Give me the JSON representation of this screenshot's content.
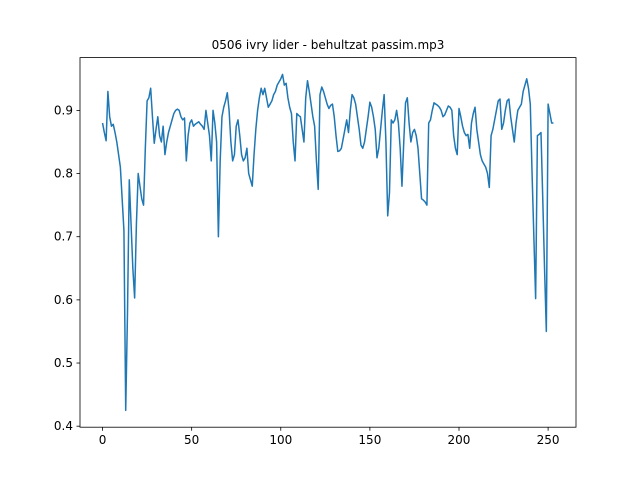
{
  "chart_data": {
    "type": "line",
    "title": "0506 ivry lider - behultzat passim.mp3",
    "color": "#1f77b4",
    "x": [
      0,
      1,
      2,
      3,
      4,
      5,
      6,
      7,
      8,
      9,
      10,
      11,
      12,
      13,
      14,
      15,
      16,
      17,
      18,
      19,
      20,
      21,
      22,
      23,
      24,
      25,
      26,
      27,
      28,
      29,
      30,
      31,
      32,
      33,
      34,
      35,
      36,
      37,
      38,
      39,
      40,
      41,
      42,
      43,
      44,
      45,
      46,
      47,
      48,
      49,
      50,
      51,
      52,
      53,
      54,
      55,
      56,
      57,
      58,
      59,
      60,
      61,
      62,
      63,
      64,
      65,
      66,
      67,
      68,
      69,
      70,
      71,
      72,
      73,
      74,
      75,
      76,
      77,
      78,
      79,
      80,
      81,
      82,
      83,
      84,
      85,
      86,
      87,
      88,
      89,
      90,
      91,
      92,
      93,
      94,
      95,
      96,
      97,
      98,
      99,
      100,
      101,
      102,
      103,
      104,
      105,
      106,
      107,
      108,
      109,
      110,
      111,
      112,
      113,
      114,
      115,
      116,
      117,
      118,
      119,
      120,
      121,
      122,
      123,
      124,
      125,
      126,
      127,
      128,
      129,
      130,
      131,
      132,
      133,
      134,
      135,
      136,
      137,
      138,
      139,
      140,
      141,
      142,
      143,
      144,
      145,
      146,
      147,
      148,
      149,
      150,
      151,
      152,
      153,
      154,
      155,
      156,
      157,
      158,
      159,
      160,
      161,
      162,
      163,
      164,
      165,
      166,
      167,
      168,
      169,
      170,
      171,
      172,
      173,
      174,
      175,
      176,
      177,
      178,
      179,
      180,
      181,
      182,
      183,
      184,
      185,
      186,
      187,
      188,
      189,
      190,
      191,
      192,
      193,
      194,
      195,
      196,
      197,
      198,
      199,
      200,
      201,
      202,
      203,
      204,
      205,
      206,
      207,
      208,
      209,
      210,
      211,
      212,
      213,
      214,
      215,
      216,
      217,
      218,
      219,
      220,
      221,
      222,
      223,
      224,
      225,
      226,
      227,
      228,
      229,
      230,
      231,
      232,
      233,
      234,
      235,
      236,
      237,
      238,
      239,
      240,
      241,
      242,
      243,
      244,
      245,
      246,
      247,
      248,
      249,
      250,
      251,
      252,
      253
    ],
    "values": [
      0.88,
      0.865,
      0.852,
      0.93,
      0.89,
      0.875,
      0.878,
      0.865,
      0.85,
      0.83,
      0.81,
      0.76,
      0.71,
      0.425,
      0.58,
      0.79,
      0.72,
      0.65,
      0.603,
      0.72,
      0.8,
      0.78,
      0.76,
      0.75,
      0.84,
      0.915,
      0.92,
      0.935,
      0.89,
      0.848,
      0.87,
      0.89,
      0.86,
      0.85,
      0.875,
      0.83,
      0.85,
      0.865,
      0.875,
      0.885,
      0.895,
      0.9,
      0.902,
      0.9,
      0.89,
      0.885,
      0.888,
      0.82,
      0.86,
      0.88,
      0.885,
      0.875,
      0.878,
      0.88,
      0.882,
      0.878,
      0.875,
      0.87,
      0.9,
      0.88,
      0.86,
      0.82,
      0.9,
      0.88,
      0.85,
      0.7,
      0.82,
      0.89,
      0.905,
      0.915,
      0.928,
      0.9,
      0.85,
      0.82,
      0.83,
      0.875,
      0.885,
      0.86,
      0.83,
      0.82,
      0.825,
      0.84,
      0.8,
      0.79,
      0.78,
      0.83,
      0.87,
      0.9,
      0.92,
      0.935,
      0.925,
      0.935,
      0.92,
      0.905,
      0.91,
      0.915,
      0.925,
      0.93,
      0.94,
      0.945,
      0.95,
      0.957,
      0.94,
      0.943,
      0.92,
      0.905,
      0.895,
      0.85,
      0.82,
      0.895,
      0.892,
      0.89,
      0.87,
      0.85,
      0.92,
      0.947,
      0.93,
      0.91,
      0.89,
      0.875,
      0.82,
      0.775,
      0.925,
      0.937,
      0.93,
      0.92,
      0.91,
      0.903,
      0.908,
      0.91,
      0.89,
      0.86,
      0.835,
      0.836,
      0.84,
      0.855,
      0.87,
      0.885,
      0.865,
      0.9,
      0.925,
      0.92,
      0.91,
      0.89,
      0.87,
      0.845,
      0.84,
      0.85,
      0.87,
      0.89,
      0.913,
      0.905,
      0.89,
      0.87,
      0.825,
      0.84,
      0.87,
      0.9,
      0.925,
      0.85,
      0.733,
      0.77,
      0.885,
      0.88,
      0.885,
      0.9,
      0.88,
      0.84,
      0.78,
      0.85,
      0.912,
      0.92,
      0.88,
      0.85,
      0.865,
      0.87,
      0.86,
      0.84,
      0.8,
      0.76,
      0.758,
      0.755,
      0.75,
      0.88,
      0.885,
      0.9,
      0.912,
      0.91,
      0.908,
      0.905,
      0.9,
      0.89,
      0.893,
      0.9,
      0.907,
      0.905,
      0.9,
      0.86,
      0.84,
      0.83,
      0.903,
      0.89,
      0.875,
      0.865,
      0.86,
      0.862,
      0.84,
      0.88,
      0.895,
      0.905,
      0.87,
      0.85,
      0.83,
      0.82,
      0.815,
      0.81,
      0.8,
      0.778,
      0.86,
      0.87,
      0.885,
      0.9,
      0.915,
      0.918,
      0.87,
      0.88,
      0.9,
      0.915,
      0.918,
      0.89,
      0.87,
      0.85,
      0.88,
      0.9,
      0.905,
      0.91,
      0.93,
      0.94,
      0.95,
      0.935,
      0.91,
      0.8,
      0.7,
      0.602,
      0.86,
      0.862,
      0.865,
      0.76,
      0.65,
      0.55,
      0.91,
      0.895,
      0.88,
      0.88
    ],
    "xlim": [
      -12.65,
      265.65
    ],
    "ylim": [
      0.3984,
      0.9836
    ],
    "xticks": [
      0,
      50,
      100,
      150,
      200,
      250
    ],
    "yticks": [
      0.4,
      0.5,
      0.6,
      0.7,
      0.8,
      0.9
    ]
  }
}
